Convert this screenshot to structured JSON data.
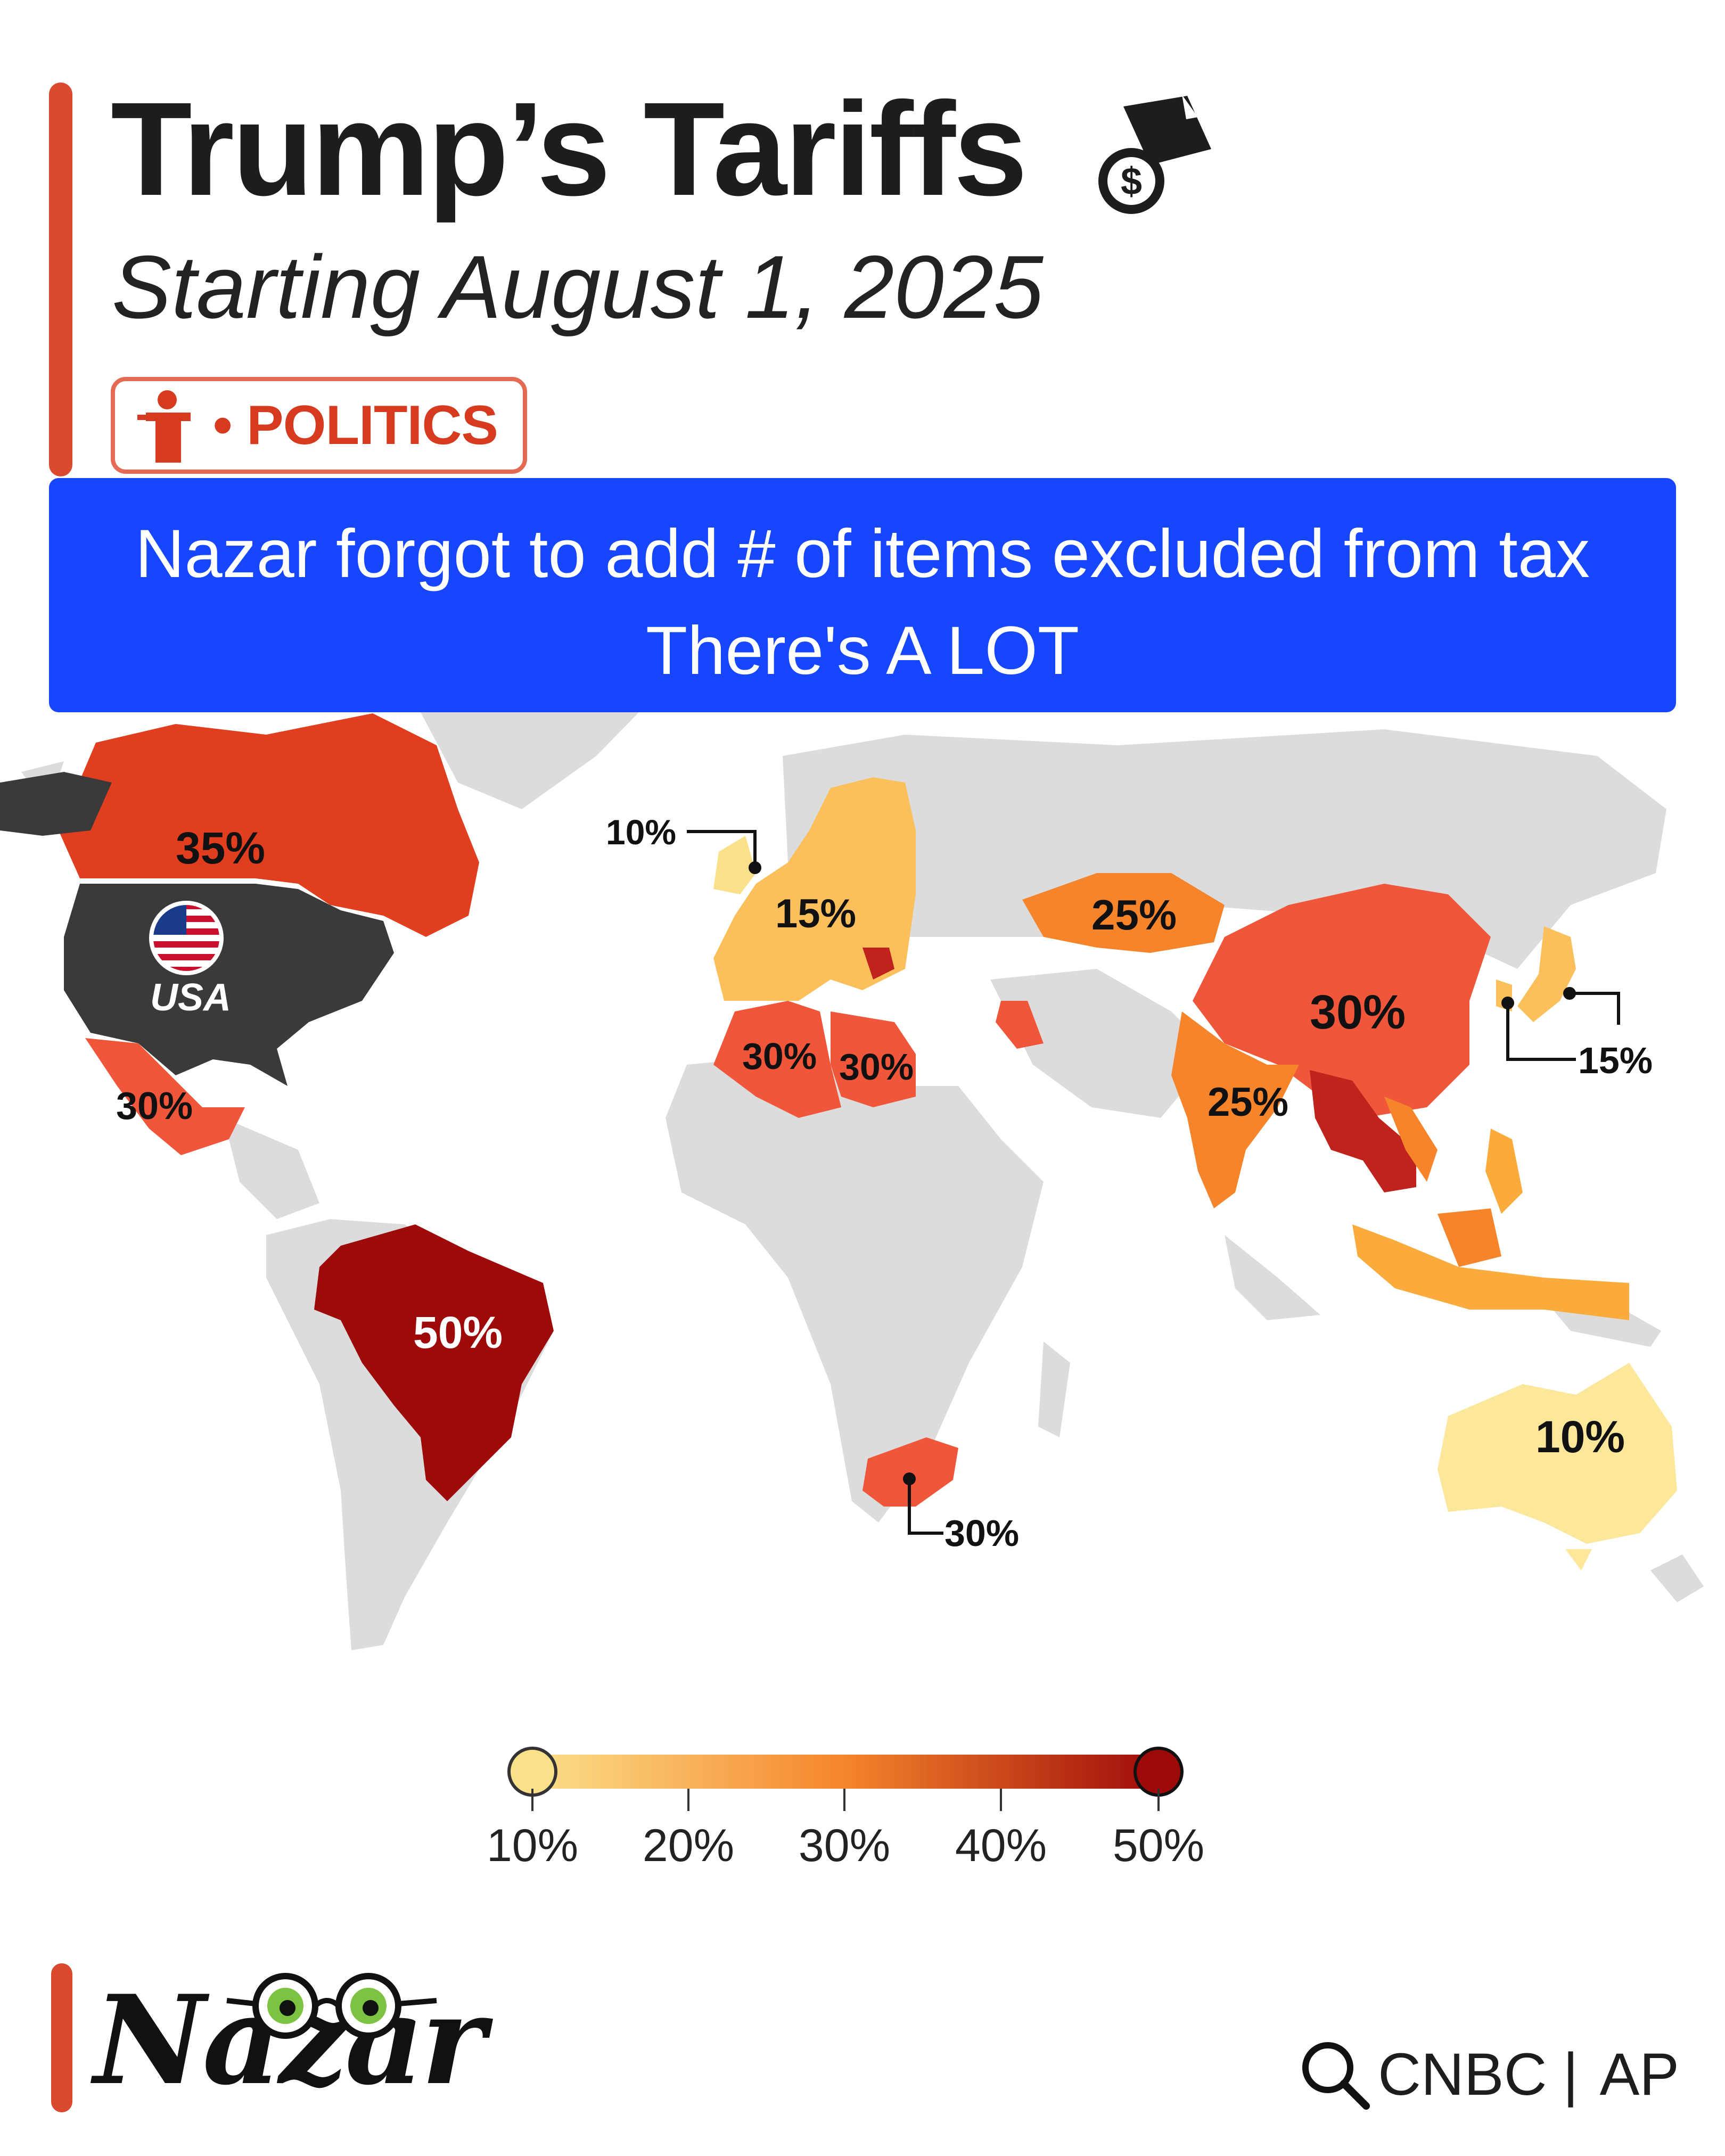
{
  "header": {
    "title": "Trump’s Tariffs",
    "subtitle": "Starting August 1, 2025",
    "title_icon": "money-bag-document-icon",
    "badge": {
      "icon": "podium-speaker-icon",
      "label": "• POLITICS"
    }
  },
  "banner": {
    "line1": "Nazar forgot to add # of items excluded from tax",
    "line2": "There's A LOT"
  },
  "map": {
    "countries": [
      {
        "name": "Canada",
        "tariff": 35,
        "label": "35%",
        "color": "#e03e1e"
      },
      {
        "name": "USA",
        "tariff": null,
        "label": "USA",
        "color": "#3a3a3a"
      },
      {
        "name": "Mexico",
        "tariff": 30,
        "label": "30%",
        "color": "#f0573a"
      },
      {
        "name": "Brazil",
        "tariff": 50,
        "label": "50%",
        "color": "#9e0a0a"
      },
      {
        "name": "United Kingdom",
        "tariff": 10,
        "label": "10%",
        "color": "#fbe08a"
      },
      {
        "name": "European Union",
        "tariff": 15,
        "label": "15%",
        "color": "#fbbf5c"
      },
      {
        "name": "Algeria",
        "tariff": 30,
        "label": "30%",
        "color": "#f0573a"
      },
      {
        "name": "Libya",
        "tariff": 30,
        "label": "30%",
        "color": "#f0573a"
      },
      {
        "name": "Kazakhstan",
        "tariff": 25,
        "label": "25%",
        "color": "#f5842b"
      },
      {
        "name": "China",
        "tariff": 30,
        "label": "30%",
        "color": "#f0573a"
      },
      {
        "name": "India",
        "tariff": 25,
        "label": "25%",
        "color": "#f5842b"
      },
      {
        "name": "Japan / South Korea",
        "tariff": 15,
        "label": "15%",
        "color": "#fbbf5c"
      },
      {
        "name": "South Africa",
        "tariff": 30,
        "label": "30%",
        "color": "#f0573a"
      },
      {
        "name": "Australia",
        "tariff": 10,
        "label": "10%",
        "color": "#fde79a"
      }
    ],
    "background_land_color": "#dcdcdc"
  },
  "legend": {
    "ticks": [
      "10%",
      "20%",
      "30%",
      "40%",
      "50%"
    ],
    "min": 10,
    "max": 50,
    "color_low": "#fbe08a",
    "color_mid": "#f5842b",
    "color_high": "#9e0a0a"
  },
  "footer": {
    "logo": "Nazar",
    "sources_icon": "search-icon",
    "source1": "CNBC",
    "separator": "|",
    "source2": "AP"
  }
}
